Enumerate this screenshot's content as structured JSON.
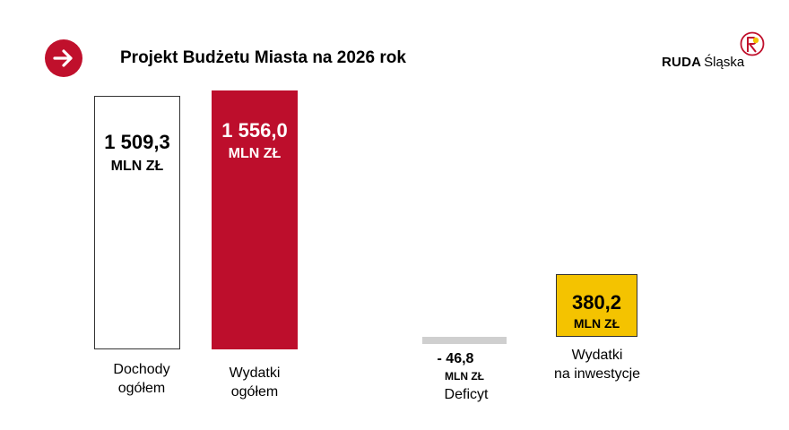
{
  "header": {
    "title": "Projekt Budżetu Miasta na 2026 rok",
    "nav_icon": "arrow-right-icon",
    "logo": {
      "strong": "RUDA",
      "light": "Śląska",
      "emblem_icon": "city-emblem-icon"
    }
  },
  "colors": {
    "accent_red": "#bd0e2c",
    "investment_yellow": "#f4c300",
    "deficit_gray": "#cfcfcf"
  },
  "chart_data": {
    "type": "bar",
    "title": "Projekt Budżetu Miasta na 2026 rok",
    "unit": "MLN ZŁ",
    "categories": [
      "Dochody\nogółem",
      "Wydatki\nogółem",
      "Deficyt",
      "Wydatki\nna inwestycje"
    ],
    "values": [
      1509.3,
      1556.0,
      -46.8,
      380.2
    ],
    "value_labels": [
      "1 509,3",
      "1 556,0",
      "- 46,8",
      "380,2"
    ],
    "bar_colors": [
      "#ffffff",
      "#bd0e2c",
      "#cfcfcf",
      "#f4c300"
    ]
  },
  "bars": {
    "income": {
      "value": "1 509,3",
      "unit": "MLN ZŁ",
      "label_line1": "Dochody",
      "label_line2": "ogółem"
    },
    "expense": {
      "value": "1 556,0",
      "unit": "MLN ZŁ",
      "label_line1": "Wydatki",
      "label_line2": "ogółem"
    },
    "deficit": {
      "value": "- 46,8",
      "unit": "MLN ZŁ",
      "label": "Deficyt"
    },
    "investment": {
      "value": "380,2",
      "unit": "MLN ZŁ",
      "label_line1": "Wydatki",
      "label_line2": "na inwestycje"
    }
  }
}
